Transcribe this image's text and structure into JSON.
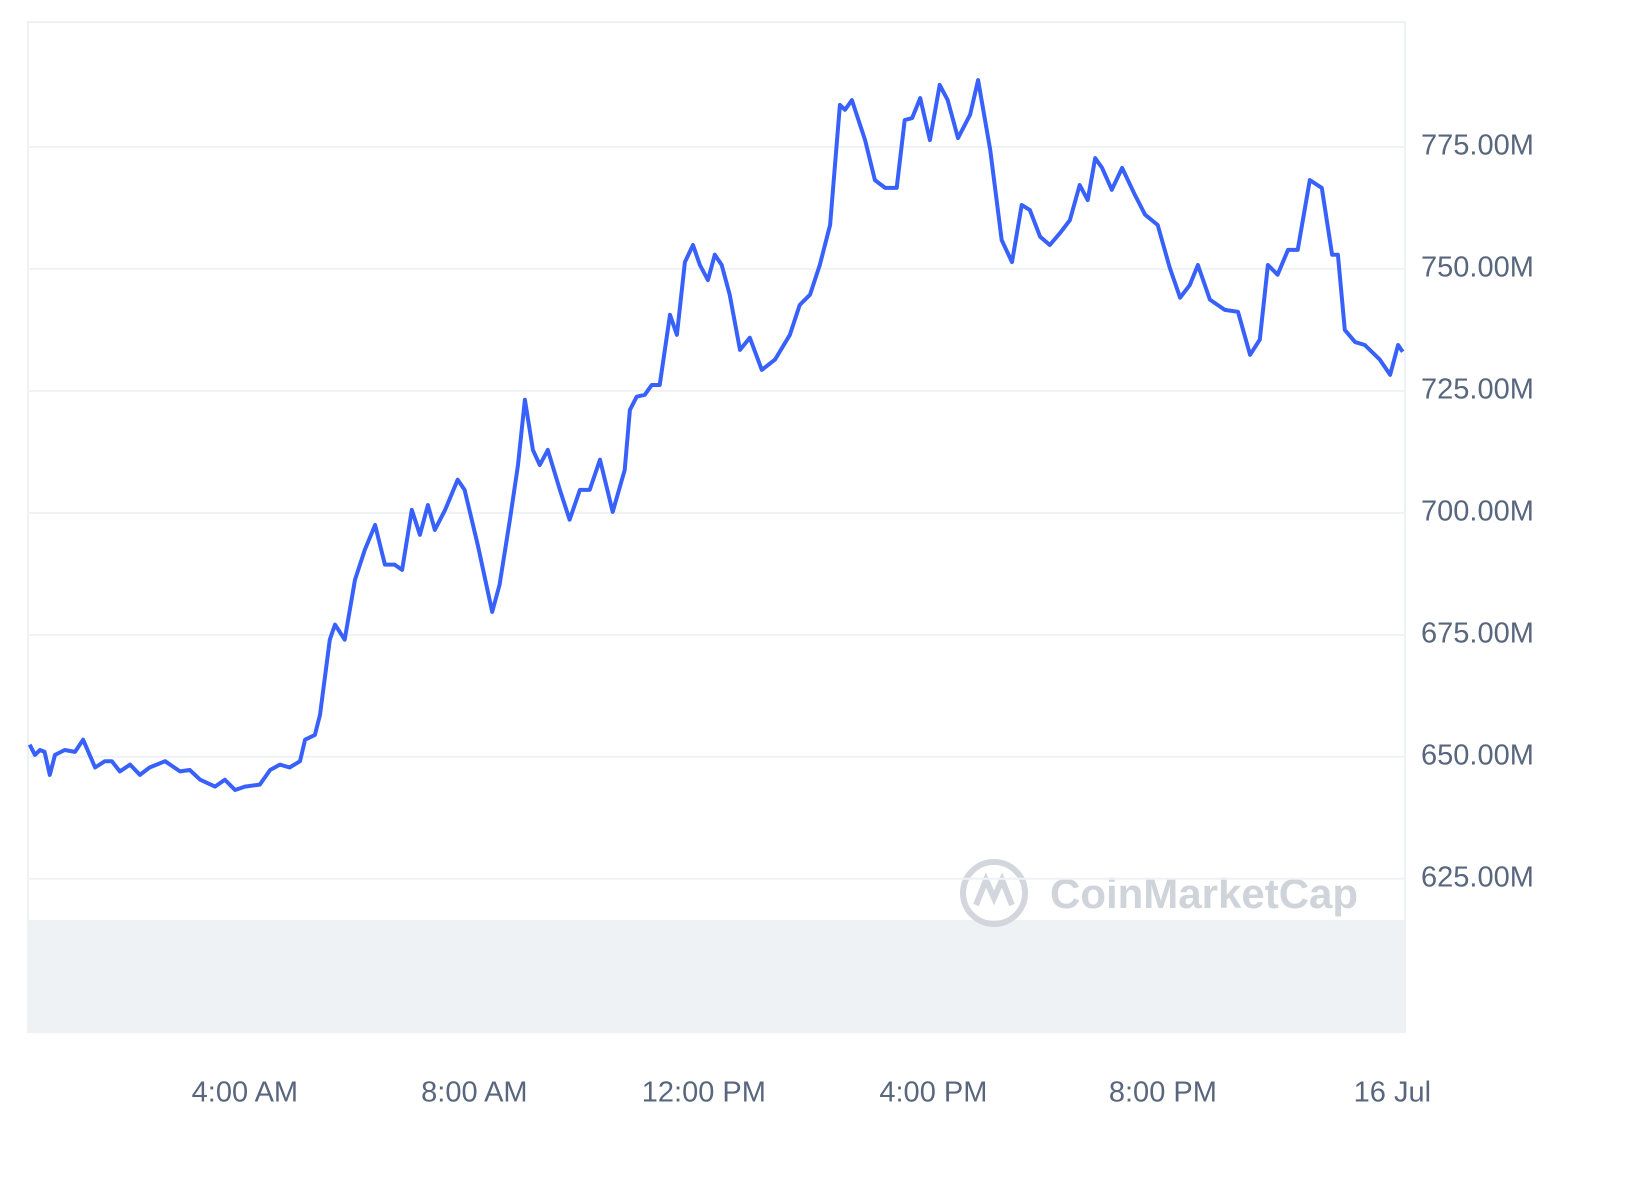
{
  "chart_data": {
    "type": "line",
    "watermark": "CoinMarketCap",
    "xlim": [
      0.22,
      24.22
    ],
    "xticks": [
      {
        "value": 4,
        "label": "4:00 AM"
      },
      {
        "value": 8,
        "label": "8:00 AM"
      },
      {
        "value": 12,
        "label": "12:00 PM"
      },
      {
        "value": 16,
        "label": "4:00 PM"
      },
      {
        "value": 20,
        "label": "8:00 PM"
      },
      {
        "value": 24,
        "label": "16 Jul"
      }
    ],
    "ylim": [
      593.6,
      800.6
    ],
    "yticks": [
      {
        "value": 625,
        "label": "625.00M"
      },
      {
        "value": 650,
        "label": "650.00M"
      },
      {
        "value": 675,
        "label": "675.00M"
      },
      {
        "value": 700,
        "label": "700.00M"
      },
      {
        "value": 725,
        "label": "725.00M"
      },
      {
        "value": 750,
        "label": "750.00M"
      },
      {
        "value": 775,
        "label": "775.00M"
      }
    ],
    "grid": true,
    "x": [
      0.25,
      0.34,
      0.43,
      0.51,
      0.6,
      0.69,
      0.86,
      1.04,
      1.18,
      1.39,
      1.56,
      1.68,
      1.82,
      2.0,
      2.17,
      2.34,
      2.61,
      2.87,
      3.04,
      3.22,
      3.48,
      3.65,
      3.83,
      4.0,
      4.26,
      4.44,
      4.61,
      4.78,
      4.96,
      5.05,
      5.22,
      5.31,
      5.48,
      5.57,
      5.74,
      5.92,
      6.09,
      6.27,
      6.44,
      6.61,
      6.74,
      6.91,
      7.05,
      7.19,
      7.31,
      7.49,
      7.71,
      7.83,
      8.06,
      8.31,
      8.44,
      8.62,
      8.76,
      8.88,
      9.02,
      9.14,
      9.28,
      9.49,
      9.66,
      9.84,
      10.01,
      10.19,
      10.41,
      10.62,
      10.71,
      10.83,
      10.97,
      11.09,
      11.23,
      11.41,
      11.53,
      11.67,
      11.81,
      11.93,
      12.07,
      12.19,
      12.31,
      12.45,
      12.63,
      12.8,
      13.01,
      13.24,
      13.5,
      13.67,
      13.85,
      14.02,
      14.2,
      14.37,
      14.46,
      14.58,
      14.81,
      14.98,
      15.16,
      15.36,
      15.5,
      15.63,
      15.77,
      15.94,
      16.11,
      16.25,
      16.43,
      16.64,
      16.78,
      16.99,
      17.19,
      17.37,
      17.54,
      17.68,
      17.86,
      18.03,
      18.21,
      18.38,
      18.55,
      18.69,
      18.82,
      18.94,
      19.11,
      19.29,
      19.51,
      19.69,
      19.91,
      20.12,
      20.3,
      20.47,
      20.61,
      20.82,
      21.08,
      21.31,
      21.52,
      21.69,
      21.83,
      22.0,
      22.18,
      22.35,
      22.56,
      22.77,
      22.95,
      23.05,
      23.17,
      23.35,
      23.52,
      23.78,
      23.96,
      24.1,
      24.18
    ],
    "series": [
      {
        "color": "#3861fb",
        "values": [
          652.5,
          650.4,
          651.4,
          651.0,
          646.3,
          650.4,
          651.4,
          651.0,
          653.5,
          647.8,
          649.1,
          649.1,
          647.0,
          648.4,
          646.3,
          647.8,
          649.1,
          647.0,
          647.3,
          645.3,
          643.9,
          645.3,
          643.2,
          643.9,
          644.3,
          647.3,
          648.4,
          647.8,
          649.1,
          653.5,
          654.5,
          658.6,
          674.0,
          677.1,
          674.0,
          686.3,
          692.4,
          697.5,
          689.4,
          689.4,
          688.3,
          700.6,
          695.5,
          701.6,
          696.5,
          700.6,
          706.8,
          704.7,
          693.4,
          679.7,
          685.3,
          698.6,
          709.8,
          723.2,
          712.9,
          709.8,
          712.9,
          704.7,
          698.6,
          704.7,
          704.7,
          710.9,
          700.2,
          708.8,
          721.1,
          723.8,
          724.2,
          726.2,
          726.2,
          740.6,
          736.5,
          751.4,
          754.9,
          750.8,
          747.7,
          752.9,
          750.8,
          744.7,
          733.4,
          735.9,
          729.3,
          731.4,
          736.5,
          742.6,
          744.7,
          750.8,
          759.0,
          783.6,
          782.6,
          784.6,
          776.4,
          768.2,
          766.6,
          766.6,
          780.5,
          780.9,
          785.0,
          776.4,
          787.7,
          784.6,
          776.8,
          781.6,
          788.7,
          774.4,
          755.9,
          751.4,
          763.1,
          762.1,
          756.6,
          754.9,
          757.4,
          760.0,
          767.2,
          764.1,
          772.7,
          770.7,
          766.2,
          770.7,
          765.2,
          761.1,
          759.0,
          750.2,
          744.1,
          746.7,
          750.8,
          743.7,
          741.6,
          741.2,
          732.4,
          735.5,
          750.8,
          748.8,
          753.9,
          753.9,
          768.2,
          766.6,
          752.9,
          752.9,
          737.5,
          735.0,
          734.4,
          731.4,
          728.3,
          734.4,
          733.0
        ]
      }
    ]
  }
}
